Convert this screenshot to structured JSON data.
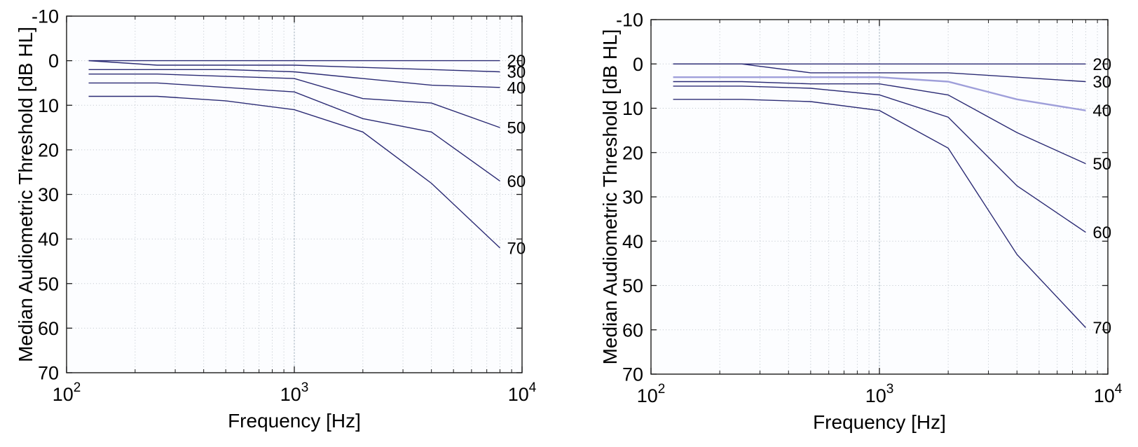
{
  "style": {
    "background": "#ffffff",
    "plot_bg": "#fcfdff",
    "line": "#2b2b74",
    "grid": "#c6ccd3",
    "grid_major": "#9faebb",
    "axis": "#1a1a1a",
    "text": "#000000",
    "highlight_line": "#9f9fda"
  },
  "chart_data": [
    {
      "id": "left",
      "type": "line",
      "title": "",
      "xlabel": "Frequency [Hz]",
      "ylabel": "Median Audiometric Threshold [dB HL]",
      "x_scale": "log",
      "xlim": [
        100,
        10000
      ],
      "ylim": [
        -10,
        70
      ],
      "y_axis_reversed_display": "(-10 at top, 70 at bottom)",
      "grid": "dotted",
      "yticks": [
        -10,
        0,
        10,
        20,
        30,
        40,
        50,
        60,
        70
      ],
      "xtick_values": [
        100,
        1000,
        10000
      ],
      "xtick_labels": [
        {
          "base": "10",
          "exp": "2"
        },
        {
          "base": "10",
          "exp": "3"
        },
        {
          "base": "10",
          "exp": "4"
        }
      ],
      "x": [
        125,
        250,
        500,
        1000,
        2000,
        4000,
        8000
      ],
      "series": [
        {
          "label": "20",
          "values": [
            0,
            0,
            0,
            0,
            0,
            0,
            0
          ]
        },
        {
          "label": "30",
          "values": [
            0,
            1,
            1,
            1,
            1.5,
            2,
            2.5
          ]
        },
        {
          "label": "40",
          "values": [
            2,
            2,
            2,
            2.5,
            4,
            5.5,
            6
          ]
        },
        {
          "label": "50",
          "values": [
            3,
            3,
            3.5,
            4,
            8.5,
            9.5,
            15
          ]
        },
        {
          "label": "60",
          "values": [
            5,
            5,
            6,
            7,
            13,
            16,
            27
          ]
        },
        {
          "label": "70",
          "values": [
            8,
            8,
            9,
            11,
            16,
            27.5,
            42
          ]
        }
      ],
      "series_label_placement": "right-of-last-point"
    },
    {
      "id": "right",
      "type": "line",
      "title": "",
      "xlabel": "Frequency [Hz]",
      "ylabel": "Median Audiometric Threshold [dB HL]",
      "x_scale": "log",
      "xlim": [
        100,
        10000
      ],
      "ylim": [
        -10,
        70
      ],
      "y_axis_reversed_display": "(-10 at top, 70 at bottom)",
      "grid": "dotted",
      "yticks": [
        -10,
        0,
        10,
        20,
        30,
        40,
        50,
        60,
        70
      ],
      "xtick_values": [
        100,
        1000,
        10000
      ],
      "xtick_labels": [
        {
          "base": "10",
          "exp": "2"
        },
        {
          "base": "10",
          "exp": "3"
        },
        {
          "base": "10",
          "exp": "4"
        }
      ],
      "x": [
        125,
        250,
        500,
        1000,
        2000,
        4000,
        8000
      ],
      "series": [
        {
          "label": "20",
          "values": [
            0,
            0,
            0,
            0,
            0,
            0,
            0
          ]
        },
        {
          "label": "30",
          "values": [
            0,
            0,
            2,
            2,
            2,
            3,
            4
          ]
        },
        {
          "label": "40",
          "values": [
            3,
            3,
            3,
            3,
            4,
            8,
            10.5
          ],
          "color": "#9f9fda",
          "width": 2.4
        },
        {
          "label": "50",
          "values": [
            4,
            4,
            4.5,
            4.5,
            7,
            15.5,
            22.5
          ]
        },
        {
          "label": "60",
          "values": [
            5,
            5,
            5.5,
            7,
            12,
            27.5,
            38
          ]
        },
        {
          "label": "70",
          "values": [
            8,
            8,
            8.5,
            10.5,
            19,
            43,
            59.5
          ]
        }
      ],
      "series_label_placement": "right-of-last-point"
    }
  ]
}
